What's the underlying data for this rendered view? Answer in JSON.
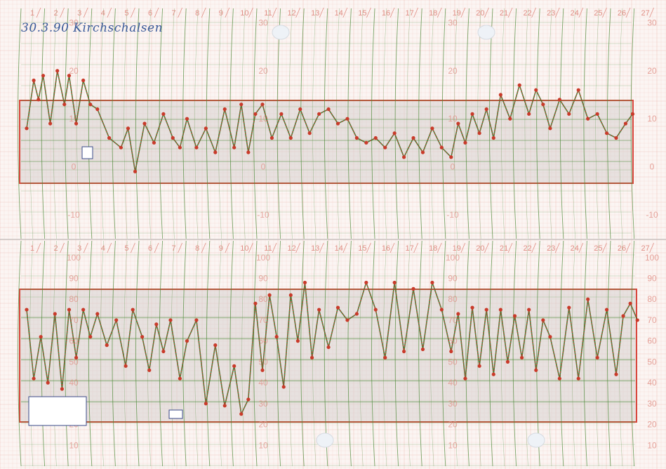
{
  "header": {
    "note": "30.3.90 Kirchschalsen"
  },
  "colors": {
    "paper": "#fbf5f3",
    "grid_red": "#e8a59b",
    "grid_green": "#4f8a3a",
    "band_fill": "#d7cfcd",
    "frame_red": "#d8473c",
    "trace_red": "#c93a2a",
    "trace_green": "#2d7d2d",
    "number_red": "#e08d83"
  },
  "chart_data": [
    {
      "type": "line",
      "chart": "temperature",
      "x_labels": [
        "1",
        "2",
        "3",
        "4",
        "5",
        "6",
        "7",
        "8",
        "9",
        "10",
        "11",
        "12",
        "13",
        "14",
        "15",
        "16",
        "17",
        "18",
        "19",
        "20",
        "21",
        "22",
        "23",
        "24",
        "25",
        "26",
        "27"
      ],
      "y_labels": [
        "30",
        "20",
        "10",
        "0",
        "-10"
      ],
      "y_ticks": [
        30,
        20,
        10,
        0,
        -10
      ],
      "ylim": [
        -15,
        33
      ],
      "x": [
        0,
        0.3,
        0.5,
        0.7,
        1.0,
        1.3,
        1.6,
        1.8,
        2.1,
        2.4,
        2.7,
        3.0,
        3.5,
        4.0,
        4.3,
        4.6,
        5.0,
        5.4,
        5.8,
        6.2,
        6.5,
        6.8,
        7.2,
        7.6,
        8.0,
        8.4,
        8.8,
        9.1,
        9.4,
        9.7,
        10.0,
        10.4,
        10.8,
        11.2,
        11.6,
        12.0,
        12.4,
        12.8,
        13.2,
        13.6,
        14.0,
        14.4,
        14.8,
        15.2,
        15.6,
        16.0,
        16.4,
        16.8,
        17.2,
        17.6,
        18.0,
        18.3,
        18.6,
        18.9,
        19.2,
        19.5,
        19.8,
        20.1,
        20.5,
        20.9,
        21.3,
        21.6,
        21.9,
        22.2,
        22.6,
        23.0,
        23.4,
        23.8,
        24.2,
        24.6,
        25.0,
        25.4,
        25.7
      ],
      "y": [
        8,
        18,
        14,
        19,
        9,
        20,
        13,
        19,
        9,
        18,
        13,
        12,
        6,
        4,
        8,
        -1,
        9,
        5,
        11,
        6,
        4,
        10,
        4,
        8,
        3,
        12,
        4,
        13,
        3,
        11,
        13,
        6,
        11,
        6,
        12,
        7,
        11,
        12,
        9,
        10,
        6,
        5,
        6,
        4,
        7,
        2,
        6,
        3,
        8,
        4,
        2,
        9,
        5,
        11,
        7,
        12,
        6,
        15,
        10,
        17,
        11,
        16,
        13,
        8,
        14,
        11,
        16,
        10,
        11,
        7,
        6,
        9,
        11
      ]
    },
    {
      "type": "line",
      "chart": "humidity",
      "x_labels": [
        "1",
        "2",
        "3",
        "4",
        "5",
        "6",
        "7",
        "8",
        "9",
        "10",
        "11",
        "12",
        "13",
        "14",
        "15",
        "16",
        "17",
        "18",
        "19",
        "20",
        "21",
        "22",
        "23",
        "24",
        "25",
        "26",
        "27"
      ],
      "y_labels": [
        "100",
        "90",
        "80",
        "70",
        "60",
        "50",
        "40",
        "30",
        "20",
        "10",
        "0"
      ],
      "y_ticks": [
        100,
        90,
        80,
        70,
        60,
        50,
        40,
        30,
        20,
        10,
        0
      ],
      "ylim": [
        0,
        108
      ],
      "x": [
        0,
        0.3,
        0.6,
        0.9,
        1.2,
        1.5,
        1.8,
        2.1,
        2.4,
        2.7,
        3.0,
        3.4,
        3.8,
        4.2,
        4.5,
        4.9,
        5.2,
        5.5,
        5.8,
        6.1,
        6.5,
        6.8,
        7.2,
        7.6,
        8.0,
        8.4,
        8.8,
        9.1,
        9.4,
        9.7,
        10.0,
        10.3,
        10.6,
        10.9,
        11.2,
        11.5,
        11.8,
        12.1,
        12.4,
        12.8,
        13.2,
        13.6,
        14.0,
        14.4,
        14.8,
        15.2,
        15.6,
        16.0,
        16.4,
        16.8,
        17.2,
        17.6,
        18.0,
        18.3,
        18.6,
        18.9,
        19.2,
        19.5,
        19.8,
        20.1,
        20.4,
        20.7,
        21.0,
        21.3,
        21.6,
        21.9,
        22.2,
        22.6,
        23.0,
        23.4,
        23.8,
        24.2,
        24.6,
        25.0,
        25.3,
        25.6,
        25.9
      ],
      "y": [
        75,
        42,
        62,
        40,
        73,
        37,
        75,
        52,
        75,
        62,
        73,
        58,
        70,
        48,
        75,
        62,
        46,
        68,
        55,
        70,
        42,
        60,
        70,
        30,
        58,
        29,
        48,
        25,
        32,
        78,
        46,
        82,
        62,
        38,
        82,
        60,
        88,
        52,
        75,
        57,
        76,
        70,
        73,
        88,
        75,
        52,
        88,
        55,
        85,
        56,
        88,
        75,
        55,
        73,
        42,
        76,
        48,
        75,
        44,
        75,
        50,
        72,
        52,
        75,
        46,
        70,
        62,
        42,
        76,
        42,
        80,
        52,
        75,
        44,
        72,
        78,
        70
      ]
    }
  ]
}
